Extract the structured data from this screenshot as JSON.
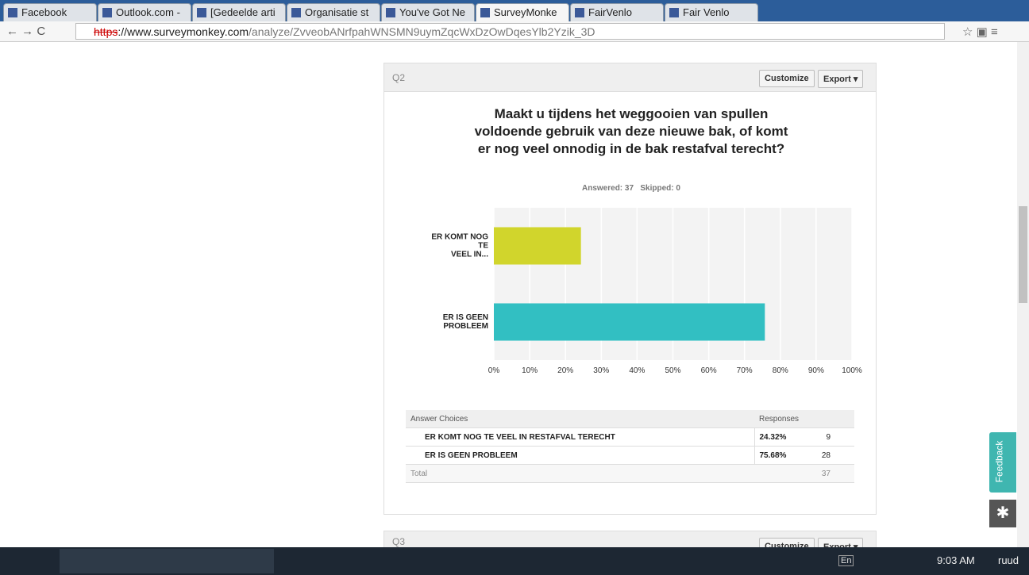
{
  "browser": {
    "tabs": [
      "Facebook",
      "Outlook.com - ",
      "[Gedeelde arti",
      "Organisatie st",
      "You've Got Ne",
      "SurveyMonke",
      "FairVenlo",
      "Fair Venlo"
    ],
    "url_scheme": "https",
    "url_host": "://www.surveymonkey.com",
    "url_path": "/analyze/ZvveobANrfpahWNSMN9uymZqcWxDzOwDqesYlb2Yzik_3D"
  },
  "q2": {
    "label": "Q2",
    "customize": "Customize",
    "export": "Export ▾",
    "answered": "Answered: 37",
    "skipped": "Skipped: 0"
  },
  "chart_data": {
    "type": "barh",
    "title": "Maakt u tijdens het weggooien van spullen voldoende gebruik van deze nieuwe bak, of komt er nog veel onnodig in de bak restafval terecht?",
    "categories": [
      "ER KOMT NOG\nTE\nVEEL IN...",
      "ER IS GEEN\nPROBLEEM"
    ],
    "values": [
      24.32,
      75.68
    ],
    "colors": [
      "#d1d52c",
      "#32bfc2"
    ],
    "xlim": [
      0,
      100
    ],
    "xticks": [
      {
        "value": 0,
        "label": "0%"
      },
      {
        "value": 10,
        "label": "10%"
      },
      {
        "value": 20,
        "label": "20%"
      },
      {
        "value": 30,
        "label": "30%"
      },
      {
        "value": 40,
        "label": "40%"
      },
      {
        "value": 50,
        "label": "50%"
      },
      {
        "value": 60,
        "label": "60%"
      },
      {
        "value": 70,
        "label": "70%"
      },
      {
        "value": 80,
        "label": "80%"
      },
      {
        "value": 90,
        "label": "90%"
      },
      {
        "value": 100,
        "label": "100%"
      }
    ],
    "grid": true
  },
  "table": {
    "header": [
      "Answer Choices",
      "Responses"
    ],
    "rows": [
      [
        "ER KOMT NOG TE VEEL IN RESTAFVAL TERECHT",
        "24.32%",
        9
      ],
      [
        "ER IS GEEN PROBLEEM",
        "75.68%",
        28
      ]
    ],
    "total": [
      "Total",
      37
    ]
  },
  "q3": {
    "label": "Q3",
    "customize": "Customize",
    "export": "Export ▾"
  },
  "feedback": "Feedback",
  "taskbar": {
    "lang": "En",
    "time": "9:03 AM",
    "user": "ruud"
  }
}
